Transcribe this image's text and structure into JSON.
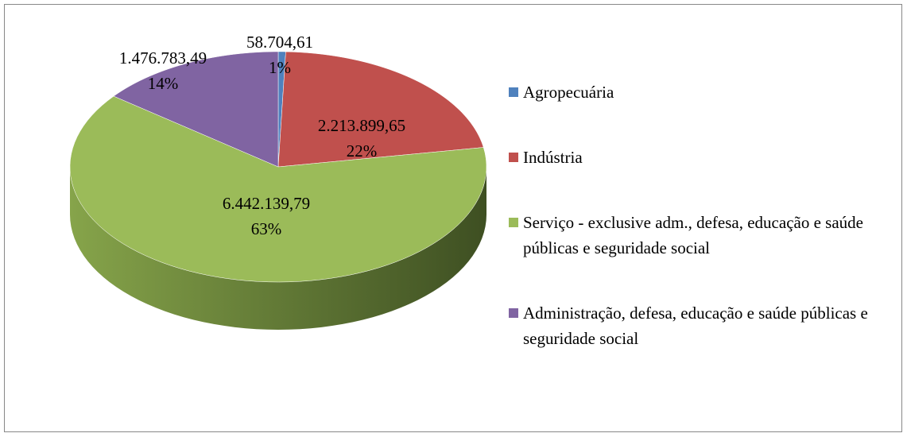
{
  "chart_data": {
    "type": "pie",
    "categories": [
      "Agropecuária",
      "Indústria",
      "Serviço - exclusive adm., defesa, educação e saúde públicas e seguridade social",
      "Administração, defesa, educação e saúde públicas e seguridade social"
    ],
    "values": [
      58704.61,
      2213899.65,
      6442139.79,
      1476783.49
    ],
    "value_labels": [
      "58.704,61",
      "2.213.899,65",
      "6.442.139,79",
      "1.476.783,49"
    ],
    "percent_labels": [
      "1%",
      "22%",
      "63%",
      "14%"
    ],
    "colors": [
      "#4f81bd",
      "#c0504d",
      "#9bbb59",
      "#8064a2"
    ],
    "legend": "right"
  }
}
